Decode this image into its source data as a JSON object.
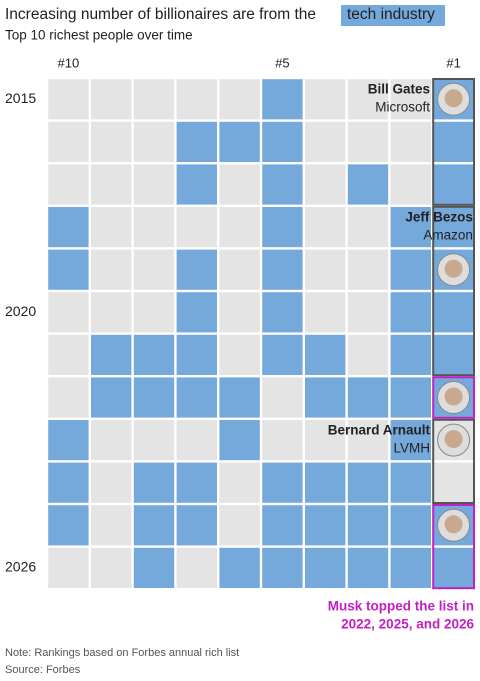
{
  "chart_data": {
    "type": "grid",
    "title": "Increasing number of billionaires are from the",
    "title_highlight": "tech industry",
    "subtitle": "Top 10 richest people over time",
    "columns": [
      "#10",
      null,
      null,
      null,
      null,
      "#5",
      null,
      null,
      null,
      "#1"
    ],
    "rows": [
      "2015",
      null,
      null,
      null,
      null,
      "2020",
      null,
      null,
      null,
      null,
      null,
      "2026"
    ],
    "legend": {
      "on_color": "#75a9dc",
      "off_color": "#e4e4e4"
    },
    "values": [
      [
        0,
        0,
        0,
        0,
        0,
        1,
        0,
        0,
        0,
        1
      ],
      [
        0,
        0,
        0,
        1,
        1,
        1,
        0,
        0,
        0,
        1
      ],
      [
        0,
        0,
        0,
        1,
        0,
        1,
        0,
        1,
        0,
        1
      ],
      [
        1,
        0,
        0,
        0,
        0,
        1,
        0,
        0,
        1,
        1
      ],
      [
        1,
        0,
        0,
        1,
        0,
        1,
        0,
        0,
        1,
        1
      ],
      [
        0,
        0,
        0,
        1,
        0,
        1,
        0,
        0,
        1,
        1
      ],
      [
        0,
        1,
        1,
        1,
        0,
        1,
        1,
        0,
        1,
        1
      ],
      [
        0,
        1,
        1,
        1,
        1,
        0,
        1,
        1,
        1,
        1
      ],
      [
        1,
        0,
        0,
        0,
        1,
        0,
        0,
        0,
        1,
        0
      ],
      [
        1,
        0,
        1,
        1,
        0,
        1,
        1,
        1,
        1,
        0
      ],
      [
        1,
        0,
        1,
        1,
        0,
        1,
        1,
        1,
        1,
        1
      ],
      [
        0,
        0,
        1,
        0,
        1,
        1,
        1,
        1,
        1,
        1
      ]
    ],
    "leaders": [
      {
        "name": "Bill Gates",
        "company": "Microsoft",
        "rows": [
          0,
          2
        ],
        "color": "#555555"
      },
      {
        "name": "Jeff Bezos",
        "company": "Amazon",
        "rows": [
          3,
          6
        ],
        "color": "#555555"
      },
      {
        "rows": [
          7,
          7
        ],
        "color": "#c41fc4"
      },
      {
        "name": "Bernard Arnault",
        "company": "LVMH",
        "rows": [
          8,
          9
        ],
        "color": "#555555"
      },
      {
        "rows": [
          10,
          11
        ],
        "color": "#c41fc4"
      }
    ],
    "annotation": {
      "lines": [
        "Musk topped the list in",
        "2022, 2025, and 2026"
      ],
      "color": "#c41fc4"
    },
    "note": "Note: Rankings based on Forbes annual rich list",
    "source": "Source: Forbes"
  }
}
